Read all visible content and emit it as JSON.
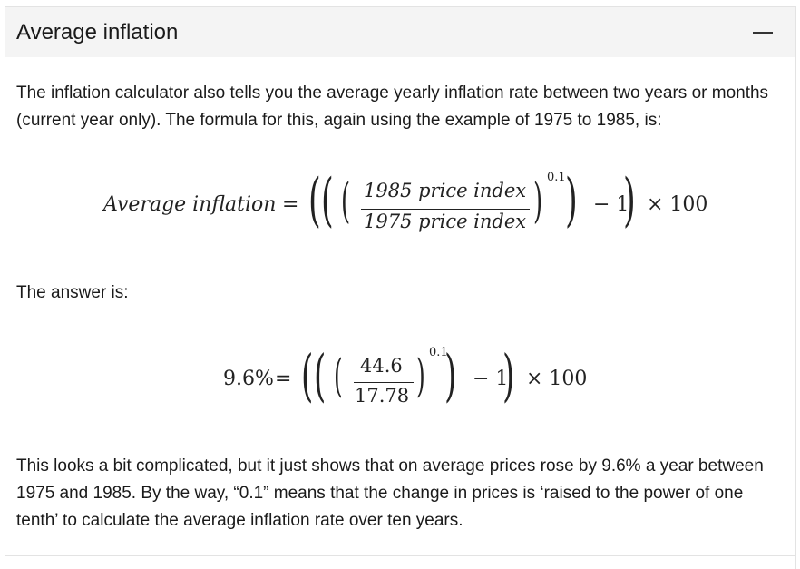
{
  "panel": {
    "title": "Average inflation",
    "collapse_icon": "minus-icon"
  },
  "paragraphs": {
    "intro": "The inflation calculator also tells you the average yearly inflation rate between two years or months (current year only). The formula for this, again using the example of 1975 to 1985, is:",
    "answer_label": "The answer is:",
    "explanation": "This looks a bit complicated, but it just shows that on average prices rose by 9.6% a year between 1975 and 1985. By the way, “0.1” means that the change in prices is ‘raised to the power of one tenth’ to calculate the average inflation rate over ten years."
  },
  "formula1": {
    "lhs": "Average inflation",
    "equals": "=",
    "numerator": "1985 price index",
    "denominator": "1975 price index",
    "exponent": "0.1",
    "minus_one": "− 1",
    "times_100": "× 100"
  },
  "formula2": {
    "lhs": "9.6%",
    "equals": "=",
    "numerator": "44.6",
    "denominator": "17.78",
    "exponent": "0.1",
    "minus_one": "− 1",
    "times_100": "× 100"
  }
}
